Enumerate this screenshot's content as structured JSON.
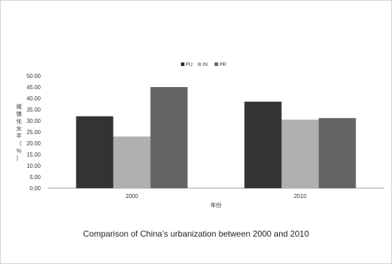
{
  "caption": "Comparison of China’s urbanization between 2000 and 2010",
  "chart_data": {
    "type": "bar",
    "categories": [
      "2000",
      "2010"
    ],
    "series": [
      {
        "name": "PU",
        "values": [
          32.0,
          38.5
        ],
        "color": "#333333"
      },
      {
        "name": "IN",
        "values": [
          23.0,
          30.5
        ],
        "color": "#b0b0b0"
      },
      {
        "name": "PR",
        "values": [
          45.0,
          31.2
        ],
        "color": "#646464"
      }
    ],
    "title": "",
    "xlabel": "年份",
    "ylabel": "城镇化水平（%）",
    "ylim": [
      0,
      50
    ],
    "yticks": [
      "0.00",
      "5.00",
      "10.00",
      "15.00",
      "20.00",
      "25.00",
      "30.00",
      "35.00",
      "40.00",
      "45.00",
      "50.00"
    ],
    "grid": false,
    "legend": "top-center"
  }
}
